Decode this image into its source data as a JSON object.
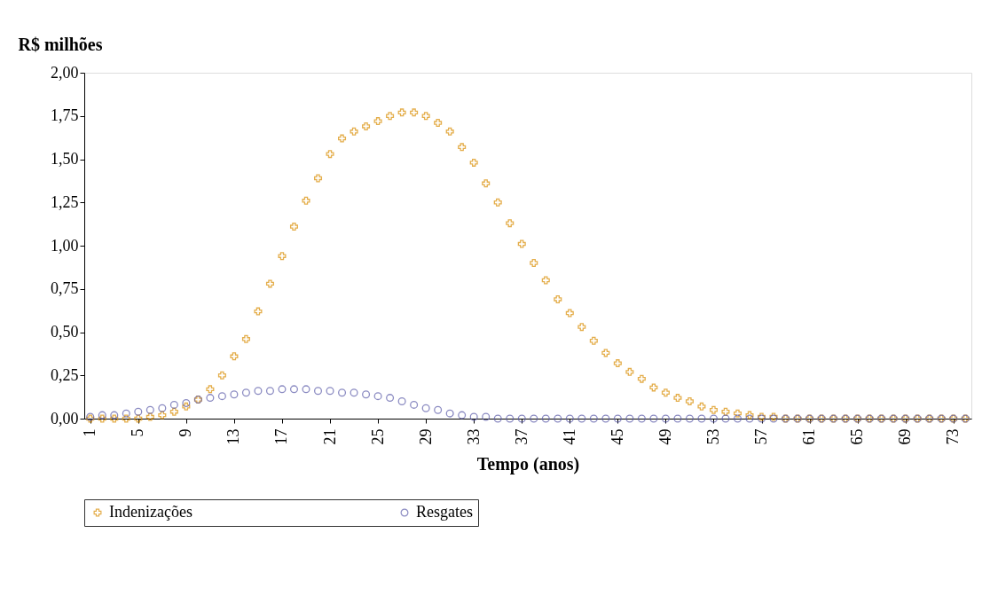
{
  "chart_data": {
    "type": "scatter",
    "ylabel": "R$ milhões",
    "xlabel": "Tempo (anos)",
    "x": [
      1,
      2,
      3,
      4,
      5,
      6,
      7,
      8,
      9,
      10,
      11,
      12,
      13,
      14,
      15,
      16,
      17,
      18,
      19,
      20,
      21,
      22,
      23,
      24,
      25,
      26,
      27,
      28,
      29,
      30,
      31,
      32,
      33,
      34,
      35,
      36,
      37,
      38,
      39,
      40,
      41,
      42,
      43,
      44,
      45,
      46,
      47,
      48,
      49,
      50,
      51,
      52,
      53,
      54,
      55,
      56,
      57,
      58,
      59,
      60,
      61,
      62,
      63,
      64,
      65,
      66,
      67,
      68,
      69,
      70,
      71,
      72,
      73,
      74
    ],
    "series": [
      {
        "name": "Indenizações",
        "color": "#d98c00",
        "marker": "cross",
        "values": [
          0,
          0,
          0,
          0,
          0,
          0.01,
          0.02,
          0.04,
          0.07,
          0.11,
          0.17,
          0.25,
          0.36,
          0.46,
          0.62,
          0.78,
          0.94,
          1.11,
          1.26,
          1.39,
          1.53,
          1.62,
          1.66,
          1.69,
          1.72,
          1.75,
          1.77,
          1.77,
          1.75,
          1.71,
          1.66,
          1.57,
          1.48,
          1.36,
          1.25,
          1.13,
          1.01,
          0.9,
          0.8,
          0.69,
          0.61,
          0.53,
          0.45,
          0.38,
          0.32,
          0.27,
          0.23,
          0.18,
          0.15,
          0.12,
          0.1,
          0.07,
          0.05,
          0.04,
          0.03,
          0.02,
          0.01,
          0.01,
          0,
          0,
          0,
          0,
          0,
          0,
          0,
          0,
          0,
          0,
          0,
          0,
          0,
          0,
          0,
          0
        ]
      },
      {
        "name": "Resgates",
        "color": "#5a5aa8",
        "marker": "circle",
        "values": [
          0.01,
          0.02,
          0.02,
          0.03,
          0.04,
          0.05,
          0.06,
          0.08,
          0.09,
          0.11,
          0.12,
          0.13,
          0.14,
          0.15,
          0.16,
          0.16,
          0.17,
          0.17,
          0.17,
          0.16,
          0.16,
          0.15,
          0.15,
          0.14,
          0.13,
          0.12,
          0.1,
          0.08,
          0.06,
          0.05,
          0.03,
          0.02,
          0.01,
          0.01,
          0,
          0,
          0,
          0,
          0,
          0,
          0,
          0,
          0,
          0,
          0,
          0,
          0,
          0,
          0,
          0,
          0,
          0,
          0,
          0,
          0,
          0,
          0,
          0,
          0,
          0,
          0,
          0,
          0,
          0,
          0,
          0,
          0,
          0,
          0,
          0,
          0,
          0,
          0,
          0
        ]
      }
    ],
    "xlim": [
      0.5,
      74.5
    ],
    "xticks": [
      1,
      5,
      9,
      13,
      17,
      21,
      25,
      29,
      33,
      37,
      41,
      45,
      49,
      53,
      57,
      61,
      65,
      69,
      73
    ],
    "ylim": [
      0,
      2
    ],
    "yticks": [
      {
        "value": 0,
        "label": "0,00"
      },
      {
        "value": 0.25,
        "label": "0,25"
      },
      {
        "value": 0.5,
        "label": "0,50"
      },
      {
        "value": 0.75,
        "label": "0,75"
      },
      {
        "value": 1,
        "label": "1,00"
      },
      {
        "value": 1.25,
        "label": "1,25"
      },
      {
        "value": 1.5,
        "label": "1,50"
      },
      {
        "value": 1.75,
        "label": "1,75"
      },
      {
        "value": 2,
        "label": "2,00"
      }
    ],
    "grid": false,
    "legend": "bottom"
  }
}
